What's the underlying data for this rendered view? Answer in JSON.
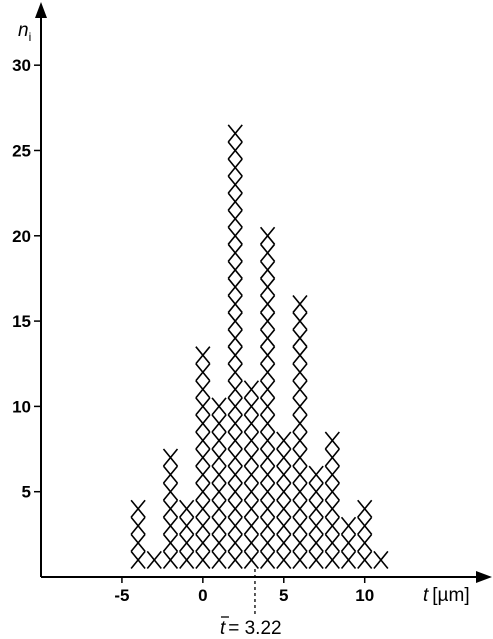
{
  "chart_data": {
    "type": "histogram (cross marks)",
    "xlabel": {
      "symbol": "t",
      "unit": "[µm]"
    },
    "ylabel": {
      "symbol": "n",
      "subscript": "i"
    },
    "x_ticks": [
      "-5",
      "0",
      "5",
      "10"
    ],
    "y_ticks": [
      "5",
      "10",
      "15",
      "20",
      "25",
      "30"
    ],
    "xlim": [
      -10,
      17
    ],
    "ylim": [
      0,
      33
    ],
    "grid": false,
    "mean": {
      "label_symbol": "t",
      "label_text": "= 3.22",
      "value": 3.22
    },
    "bins": [
      {
        "x": -4,
        "count": 4
      },
      {
        "x": -3,
        "count": 1
      },
      {
        "x": -2,
        "count": 7
      },
      {
        "x": -1,
        "count": 4
      },
      {
        "x": 0,
        "count": 13
      },
      {
        "x": 1,
        "count": 10
      },
      {
        "x": 2,
        "count": 26
      },
      {
        "x": 3,
        "count": 11
      },
      {
        "x": 4,
        "count": 20
      },
      {
        "x": 5,
        "count": 8
      },
      {
        "x": 6,
        "count": 16
      },
      {
        "x": 7,
        "count": 6
      },
      {
        "x": 8,
        "count": 8
      },
      {
        "x": 9,
        "count": 3
      },
      {
        "x": 10,
        "count": 4
      },
      {
        "x": 11,
        "count": 1
      }
    ]
  }
}
